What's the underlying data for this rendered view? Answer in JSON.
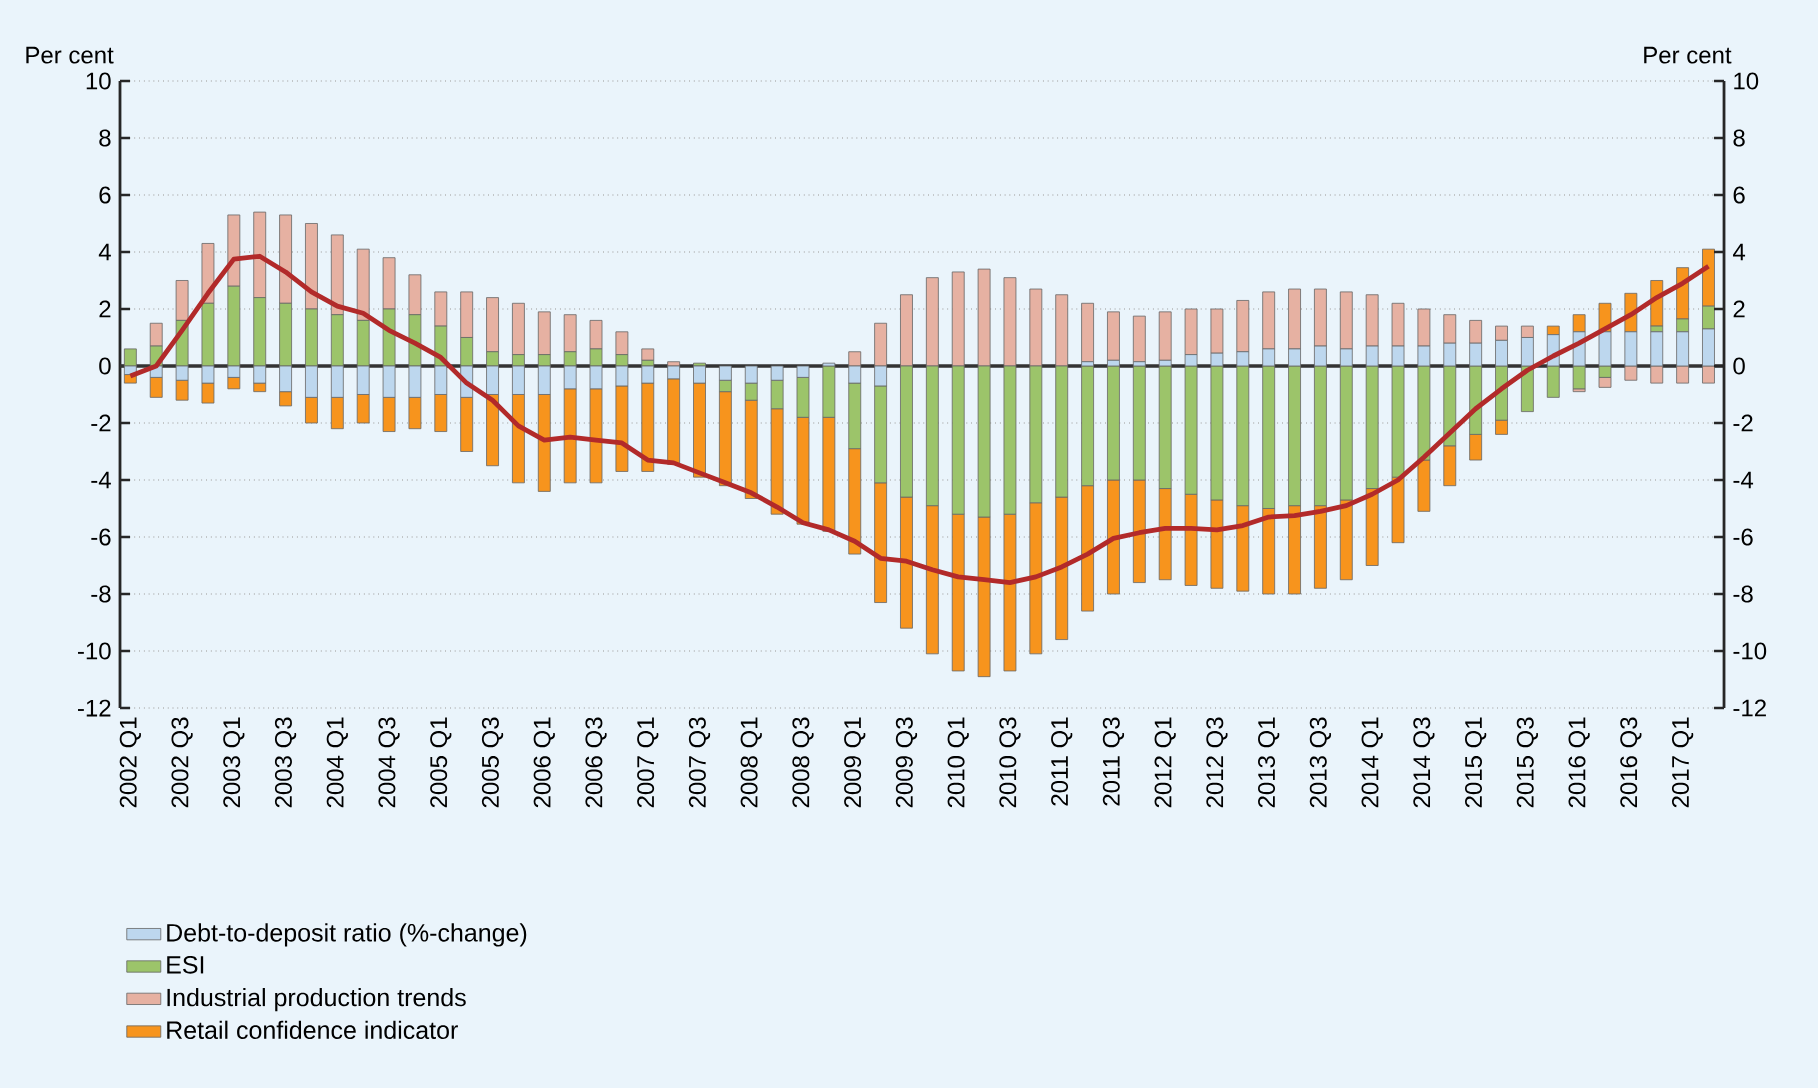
{
  "chart_data": {
    "type": "bar",
    "stacked": true,
    "ylabel": "Per cent",
    "y2label": "Per cent",
    "categories": [
      "2002 Q1",
      null,
      "2002 Q3",
      null,
      "2003 Q1",
      null,
      "2003 Q3",
      null,
      "2004 Q1",
      null,
      "2004 Q3",
      null,
      "2005 Q1",
      null,
      "2005 Q3",
      null,
      "2006 Q1",
      null,
      "2006 Q3",
      null,
      "2007 Q1",
      null,
      "2007 Q3",
      null,
      "2008 Q1",
      null,
      "2008 Q3",
      null,
      "2009 Q1",
      null,
      "2009 Q3",
      null,
      "2010 Q1",
      null,
      "2010 Q3",
      null,
      "2011 Q1",
      null,
      "2011 Q3",
      null,
      "2012 Q1",
      null,
      "2012 Q3",
      null,
      "2013 Q1",
      null,
      "2013 Q3",
      null,
      "2014 Q1",
      null,
      "2014 Q3",
      null,
      "2015 Q1",
      null,
      "2015 Q3",
      null,
      "2016 Q1",
      null,
      "2016 Q3",
      null,
      "2017 Q1",
      null
    ],
    "series": [
      {
        "name": "Debt-to-deposit ratio (%-change)",
        "color": "#bdd7ee",
        "values": [
          -0.3,
          -0.4,
          -0.5,
          -0.6,
          -0.4,
          -0.6,
          -0.9,
          -1.1,
          -1.1,
          -1.0,
          -1.1,
          -1.1,
          -1.0,
          -1.1,
          -1.0,
          -1.0,
          -1.0,
          -0.8,
          -0.8,
          -0.7,
          -0.6,
          -0.45,
          -0.6,
          -0.5,
          -0.6,
          -0.5,
          -0.4,
          0.1,
          -0.6,
          -0.7,
          0,
          0,
          0,
          0,
          0,
          0,
          0,
          0.15,
          0.2,
          0.15,
          0.2,
          0.4,
          0.45,
          0.5,
          0.6,
          0.6,
          0.7,
          0.6,
          0.7,
          0.7,
          0.7,
          0.8,
          0.8,
          0.9,
          1.0,
          1.1,
          1.2,
          1.2,
          1.2,
          1.2,
          1.2,
          1.3
        ]
      },
      {
        "name": "ESI",
        "color": "#9cc46a",
        "values": [
          0.6,
          0.7,
          1.6,
          2.2,
          2.8,
          2.4,
          2.2,
          2.0,
          1.8,
          1.6,
          2.0,
          1.8,
          1.4,
          1.0,
          0.5,
          0.4,
          0.4,
          0.5,
          0.6,
          0.4,
          0.2,
          0,
          0.1,
          -0.4,
          -0.6,
          -1.0,
          -1.4,
          -1.8,
          -2.3,
          -3.4,
          -4.6,
          -4.9,
          -5.2,
          -5.3,
          -5.2,
          -4.8,
          -4.6,
          -4.2,
          -4.0,
          -4.0,
          -4.3,
          -4.5,
          -4.7,
          -4.9,
          -5.0,
          -4.9,
          -4.9,
          -4.7,
          -4.3,
          -3.9,
          -3.3,
          -2.8,
          -2.4,
          -1.9,
          -1.6,
          -1.1,
          -0.8,
          -0.4,
          0,
          0.2,
          0.45,
          0.8
        ]
      },
      {
        "name": "Industrial production trends",
        "color": "#e6b1a2",
        "values": [
          0,
          0.8,
          1.4,
          2.1,
          2.5,
          3.0,
          3.1,
          3.0,
          2.8,
          2.5,
          1.8,
          1.4,
          1.2,
          1.6,
          1.9,
          1.8,
          1.5,
          1.3,
          1.0,
          0.8,
          0.4,
          0.15,
          0,
          0,
          0,
          0,
          0,
          0,
          0.5,
          1.5,
          2.5,
          3.1,
          3.3,
          3.4,
          3.1,
          2.7,
          2.5,
          2.05,
          1.7,
          1.6,
          1.7,
          1.6,
          1.55,
          1.8,
          2.0,
          2.1,
          2.0,
          2.0,
          1.8,
          1.5,
          1.3,
          1.0,
          0.8,
          0.5,
          0.4,
          0,
          -0.1,
          -0.35,
          -0.5,
          -0.6,
          -0.6,
          -0.6
        ]
      },
      {
        "name": "Retail confidence indicator",
        "color": "#f7941d",
        "values": [
          -0.3,
          -0.7,
          -0.7,
          -0.7,
          -0.4,
          -0.3,
          -0.5,
          -0.9,
          -1.1,
          -1.0,
          -1.2,
          -1.1,
          -1.3,
          -1.9,
          -2.5,
          -3.1,
          -3.4,
          -3.3,
          -3.3,
          -3.0,
          -3.1,
          -3.0,
          -3.3,
          -3.3,
          -3.45,
          -3.7,
          -3.75,
          -4.0,
          -3.7,
          -4.2,
          -4.6,
          -5.2,
          -5.5,
          -5.6,
          -5.5,
          -5.3,
          -5.0,
          -4.4,
          -4.0,
          -3.6,
          -3.2,
          -3.2,
          -3.1,
          -3.0,
          -3.0,
          -3.1,
          -2.9,
          -2.8,
          -2.7,
          -2.3,
          -1.8,
          -1.4,
          -0.9,
          -0.5,
          0,
          0.3,
          0.6,
          1.0,
          1.35,
          1.6,
          1.8,
          2.0
        ]
      },
      {
        "type": "line",
        "color": "#b22a2a",
        "marker": "none",
        "values": [
          -0.35,
          0,
          1.25,
          2.55,
          3.75,
          3.85,
          3.3,
          2.6,
          2.1,
          1.85,
          1.25,
          0.8,
          0.3,
          -0.6,
          -1.2,
          -2.1,
          -2.6,
          -2.5,
          -2.6,
          -2.7,
          -3.3,
          -3.4,
          -3.75,
          -4.1,
          -4.45,
          -4.95,
          -5.5,
          -5.75,
          -6.15,
          -6.75,
          -6.85,
          -7.15,
          -7.4,
          -7.5,
          -7.6,
          -7.4,
          -7.05,
          -6.6,
          -6.05,
          -5.85,
          -5.7,
          -5.7,
          -5.75,
          -5.6,
          -5.3,
          -5.25,
          -5.1,
          -4.9,
          -4.5,
          -4.0,
          -3.2,
          -2.35,
          -1.5,
          -0.8,
          -0.15,
          0.35,
          0.8,
          1.3,
          1.8,
          2.4,
          2.9,
          3.5
        ]
      }
    ],
    "ylim": [
      -12,
      10
    ],
    "yticks": [
      -12,
      -10,
      -8,
      -6,
      -4,
      -2,
      0,
      2,
      4,
      6,
      8,
      10
    ],
    "y2lim": [
      -12,
      10
    ],
    "y2ticks": [
      -12,
      -10,
      -8,
      -6,
      -4,
      -2,
      0,
      2,
      4,
      6,
      8,
      10
    ],
    "grid": "y",
    "legend": "bottom"
  }
}
